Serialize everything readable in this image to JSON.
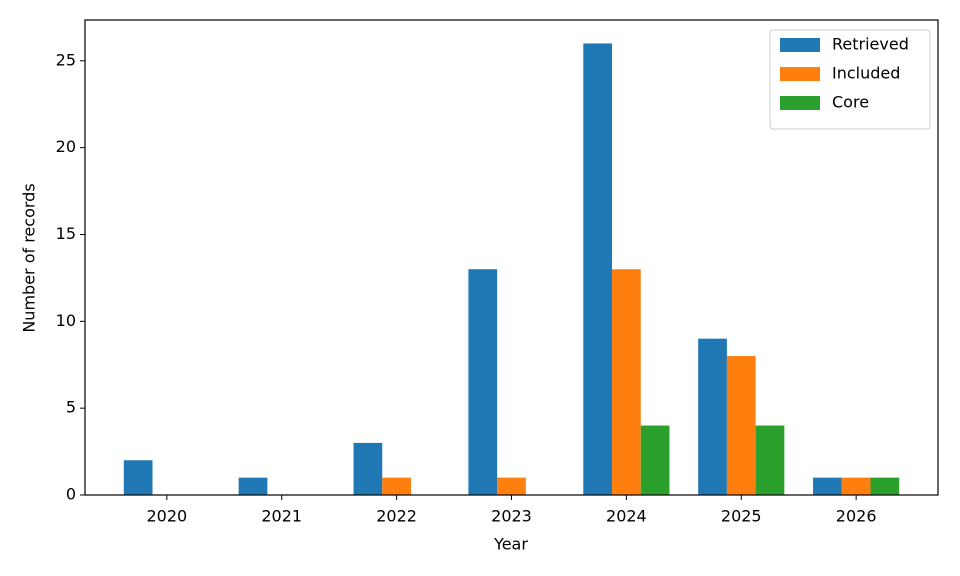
{
  "chart_data": {
    "type": "bar",
    "xlabel": "Year",
    "ylabel": "Number of records",
    "categories": [
      "2020",
      "2021",
      "2022",
      "2023",
      "2024",
      "2025",
      "2026"
    ],
    "series": [
      {
        "name": "Retrieved",
        "color": "#1f77b4",
        "values": [
          2,
          1,
          3,
          13,
          26,
          9,
          1
        ]
      },
      {
        "name": "Included",
        "color": "#ff7f0e",
        "values": [
          0,
          0,
          1,
          1,
          13,
          8,
          1
        ]
      },
      {
        "name": "Core",
        "color": "#2ca02c",
        "values": [
          0,
          0,
          0,
          0,
          4,
          4,
          1
        ]
      }
    ],
    "ylim": [
      0,
      27.35
    ],
    "yticks": [
      0,
      5,
      10,
      15,
      20,
      25
    ],
    "legend": "upper right"
  }
}
